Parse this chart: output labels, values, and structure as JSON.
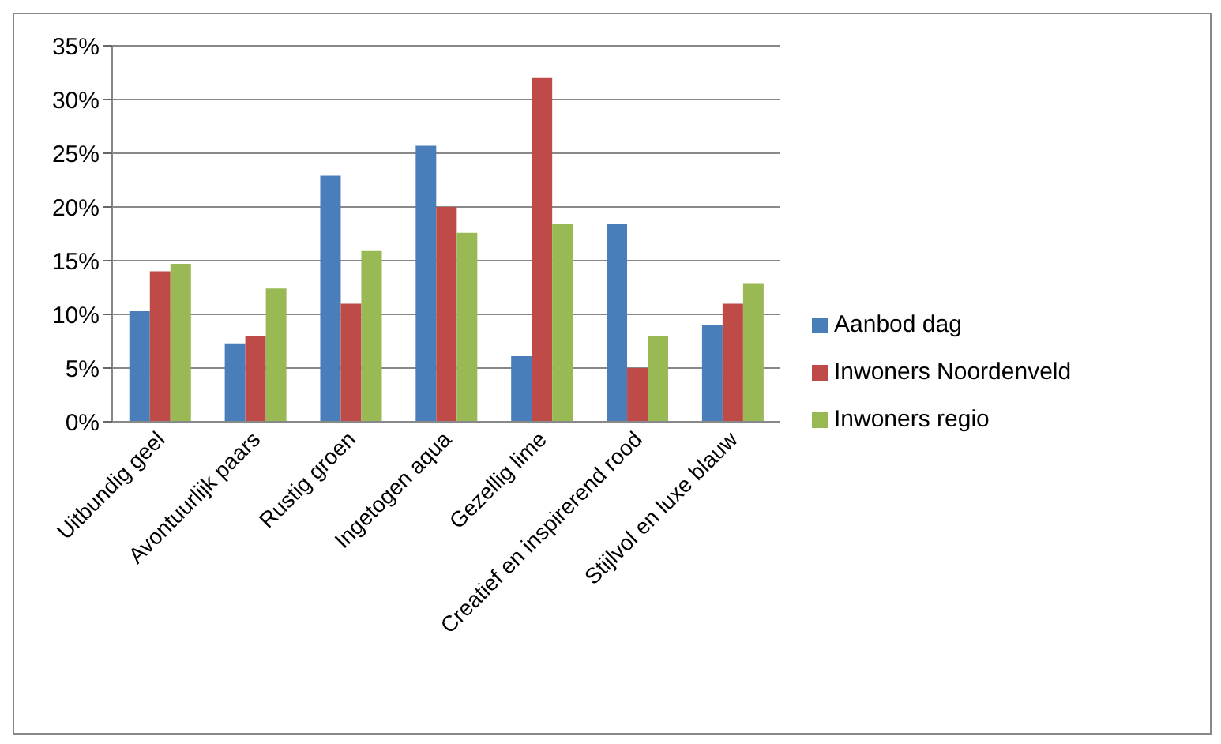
{
  "chart_data": {
    "type": "bar",
    "categories": [
      "Uitbundig geel",
      "Avontuurlijk paars",
      "Rustig groen",
      "Ingetogen aqua",
      "Gezellig lime",
      "Creatief en inspirerend rood",
      "Stijlvol en luxe blauw"
    ],
    "series": [
      {
        "name": "Aanbod dag",
        "color": "#4a7ebb",
        "values": [
          10.3,
          7.3,
          22.9,
          25.7,
          6.1,
          18.4,
          9
        ]
      },
      {
        "name": "Inwoners Noordenveld",
        "color": "#be4b48",
        "values": [
          14,
          8,
          11,
          20,
          32,
          5,
          11
        ]
      },
      {
        "name": "Inwoners regio",
        "color": "#98b954",
        "values": [
          14.7,
          12.4,
          15.9,
          17.6,
          18.4,
          8,
          12.9
        ]
      }
    ],
    "ylim": [
      0,
      35
    ],
    "yticks": [
      {
        "value": 0,
        "label": "0%"
      },
      {
        "value": 5,
        "label": "5%"
      },
      {
        "value": 10,
        "label": "10%"
      },
      {
        "value": 15,
        "label": "15%"
      },
      {
        "value": 20,
        "label": "20%"
      },
      {
        "value": 25,
        "label": "25%"
      },
      {
        "value": 30,
        "label": "30%"
      },
      {
        "value": 35,
        "label": "35%"
      }
    ],
    "grid": "y",
    "legend": "right"
  }
}
